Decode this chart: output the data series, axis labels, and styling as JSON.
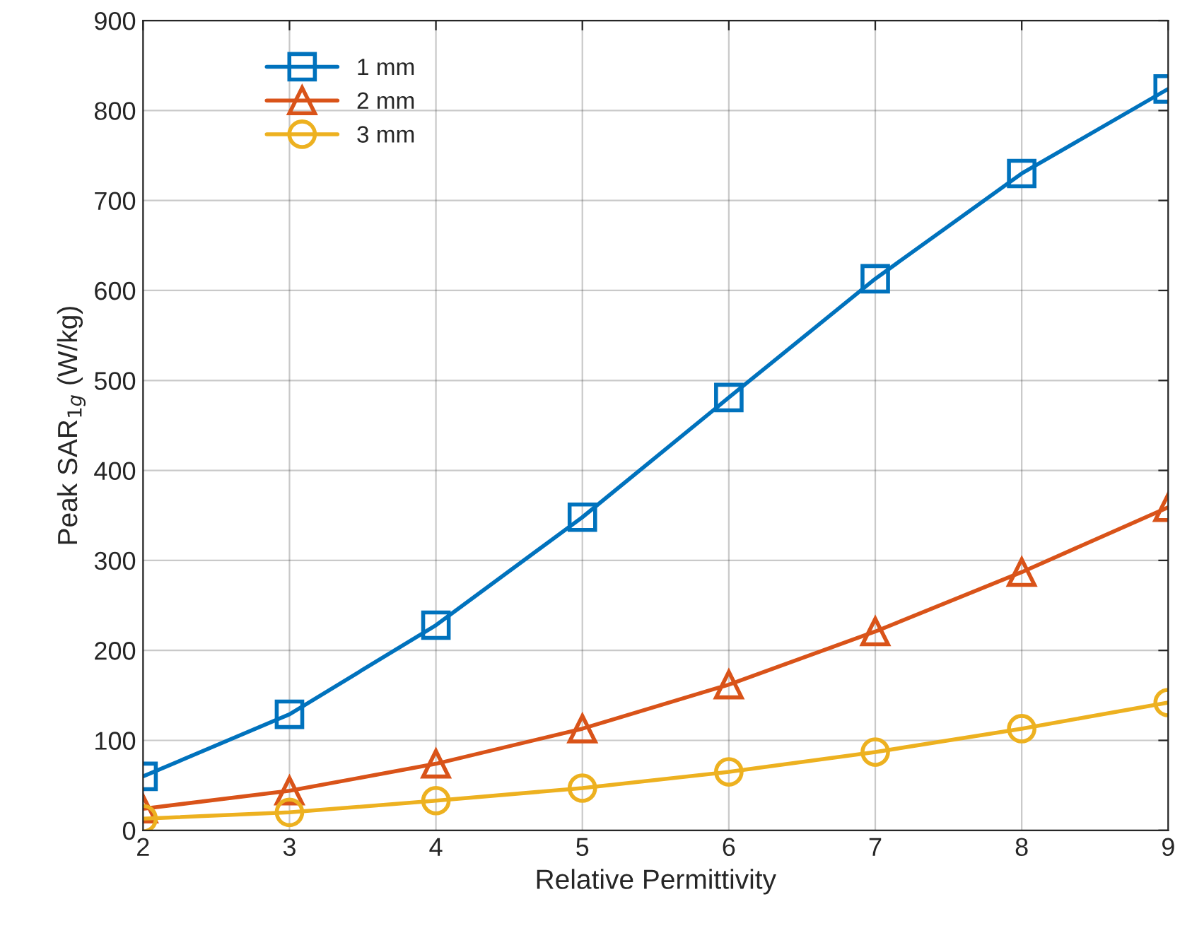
{
  "chart_data": {
    "type": "line",
    "xlabel": "Relative Permittivity",
    "ylabel": "Peak SAR$_{1g}$ (W/kg)",
    "x": [
      2,
      3,
      4,
      5,
      6,
      7,
      8,
      9
    ],
    "series": [
      {
        "name": "1 mm",
        "color": "#0072bd",
        "marker": "square",
        "values": [
          60,
          129,
          228,
          348,
          481,
          613,
          730,
          824
        ]
      },
      {
        "name": "2 mm",
        "color": "#d95319",
        "marker": "triangle",
        "values": [
          24,
          44,
          74,
          113,
          162,
          221,
          287,
          359
        ]
      },
      {
        "name": "3 mm",
        "color": "#edb120",
        "marker": "circle",
        "values": [
          13,
          20,
          33,
          47,
          65,
          87,
          113,
          142
        ]
      }
    ],
    "xlim": [
      2,
      9
    ],
    "xticks": [
      2,
      3,
      4,
      5,
      6,
      7,
      8,
      9
    ],
    "ylim": [
      0,
      900
    ],
    "yticks": [
      0,
      100,
      200,
      300,
      400,
      500,
      600,
      700,
      800,
      900
    ],
    "grid": true,
    "legend": "top left",
    "line_style": "solid"
  }
}
